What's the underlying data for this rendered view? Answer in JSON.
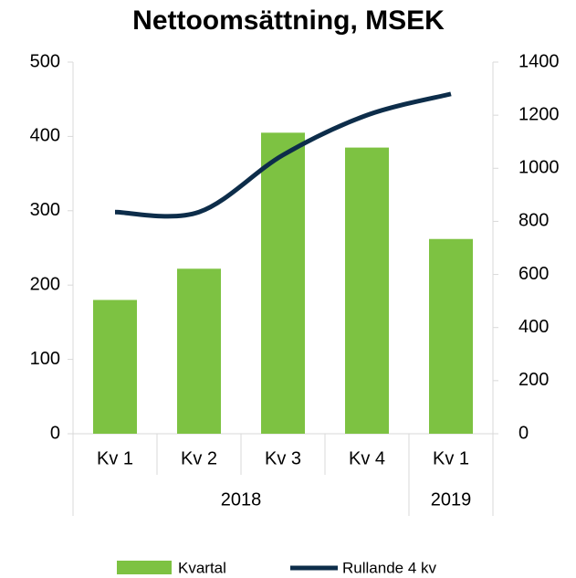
{
  "chart_data": {
    "type": "bar_line",
    "title": "Nettoomsättning, MSEK",
    "categories": [
      "Kv 1",
      "Kv 2",
      "Kv 3",
      "Kv 4",
      "Kv 1"
    ],
    "x_groups": [
      "2018",
      "2018",
      "2018",
      "2018",
      "2019"
    ],
    "series": [
      {
        "name": "Kvartal",
        "type": "bar",
        "color": "#7dc242",
        "values": [
          180,
          222,
          405,
          385,
          262
        ]
      },
      {
        "name": "Rullande 4 kv",
        "type": "line",
        "axis": "y2",
        "color": "#0d2d4a",
        "values": [
          835,
          835,
          1050,
          1200,
          1280
        ]
      }
    ],
    "ylim": [
      0,
      500
    ],
    "yticks": [
      0,
      100,
      200,
      300,
      400,
      500
    ],
    "y2lim": [
      0,
      1400
    ],
    "y2ticks": [
      0,
      200,
      400,
      600,
      800,
      1000,
      1200,
      1400
    ],
    "legend": "bottom"
  }
}
